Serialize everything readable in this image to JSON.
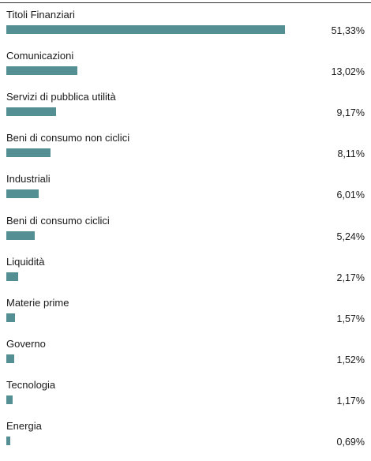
{
  "colors": {
    "bar": "#548f93",
    "text": "#1a1a1a",
    "rule": "#333333"
  },
  "chart_data": {
    "type": "bar",
    "orientation": "horizontal",
    "categories": [
      "Titoli Finanziari",
      "Comunicazioni",
      "Servizi di pubblica utilità",
      "Beni di consumo non ciclici",
      "Industriali",
      "Beni di consumo ciclici",
      "Liquidità",
      "Materie prime",
      "Governo",
      "Tecnologia",
      "Energia"
    ],
    "values": [
      51.33,
      13.02,
      9.17,
      8.11,
      6.01,
      5.24,
      2.17,
      1.57,
      1.52,
      1.17,
      0.69
    ],
    "value_labels": [
      "51,33%",
      "13,02%",
      "9,17%",
      "8,11%",
      "6,01%",
      "5,24%",
      "2,17%",
      "1,57%",
      "1,52%",
      "1,17%",
      "0,69%"
    ],
    "unit": "%",
    "grid": false,
    "legend": "none"
  }
}
